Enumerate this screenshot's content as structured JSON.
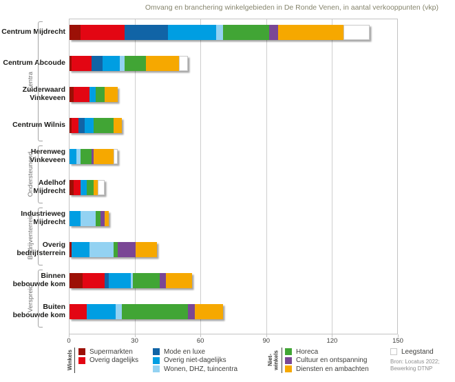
{
  "chart_data": {
    "type": "bar",
    "variant": "horizontal-stacked",
    "title": "Omvang en branchering winkelgebieden in De Ronde Venen, in aantal verkooppunten (vkp)",
    "x_axis": {
      "min": 0,
      "max": 150,
      "ticks": [
        0,
        30,
        60,
        90,
        120,
        150
      ]
    },
    "grid": "vertical-on",
    "legend_position": "bottom",
    "series": [
      {
        "key": "supermarkten",
        "name": "Supermarkten",
        "color": "#9C1006"
      },
      {
        "key": "overig_dagelijks",
        "name": "Overig dagelijks",
        "color": "#E30613"
      },
      {
        "key": "mode_en_luxe",
        "name": "Mode en luxe",
        "color": "#1164A6"
      },
      {
        "key": "overig_niet_dagelijks",
        "name": "Overig niet-dagelijks",
        "color": "#009EE2"
      },
      {
        "key": "wonen_dhz_tuincentra",
        "name": "Wonen, DHZ, tuincentra",
        "color": "#93D2F2"
      },
      {
        "key": "horeca",
        "name": "Horeca",
        "color": "#41A535"
      },
      {
        "key": "cultuur_en_ontspanning",
        "name": "Cultuur en ontspanning",
        "color": "#7A4795"
      },
      {
        "key": "diensten_en_ambachten",
        "name": "Diensten en ambachten",
        "color": "#F6A800"
      },
      {
        "key": "leegstand",
        "name": "Leegstand",
        "color": "#FFFFFF"
      }
    ],
    "groups": [
      {
        "label_lines": [
          "Centra"
        ],
        "rows": [
          0,
          1,
          2,
          3
        ]
      },
      {
        "label_lines": [
          "Ondersteunend"
        ],
        "rows": [
          4,
          5
        ]
      },
      {
        "label_lines": [
          "Bedrijventerrein"
        ],
        "rows": [
          6,
          7
        ]
      },
      {
        "label_lines": [
          "Verspreid"
        ],
        "rows": [
          8,
          9
        ]
      }
    ],
    "rows": [
      {
        "label_lines": [
          "Centrum Mijdrecht"
        ],
        "values": [
          5,
          20,
          20,
          22,
          3,
          21,
          4,
          30,
          12
        ]
      },
      {
        "label_lines": [
          "Centrum Abcoude"
        ],
        "values": [
          1,
          9,
          5,
          8,
          2,
          10,
          0,
          15,
          4
        ]
      },
      {
        "label_lines": [
          "Zuiderwaard",
          "Vinkeveen"
        ],
        "values": [
          2,
          7,
          0,
          3,
          0,
          4,
          0,
          6,
          0
        ]
      },
      {
        "label_lines": [
          "Centrum Wilnis"
        ],
        "values": [
          1,
          3,
          3,
          4,
          0,
          9,
          0,
          4,
          0
        ]
      },
      {
        "label_lines": [
          "Herenweg",
          "Vinkeveen"
        ],
        "values": [
          0,
          0,
          0,
          3,
          2,
          5,
          1,
          9,
          2
        ]
      },
      {
        "label_lines": [
          "Adelhof",
          "Mijdrecht"
        ],
        "values": [
          2,
          3,
          0,
          3,
          0,
          3,
          0,
          2,
          3
        ]
      },
      {
        "label_lines": [
          "Industrieweg",
          "Mijdrecht"
        ],
        "values": [
          0,
          0,
          0,
          5,
          7,
          2,
          2,
          2,
          0
        ]
      },
      {
        "label_lines": [
          "Overig",
          "bedrijfsterrein"
        ],
        "values": [
          1,
          0,
          0,
          8,
          11,
          2,
          8,
          10,
          0
        ]
      },
      {
        "label_lines": [
          "Binnen",
          "bebouwde kom"
        ],
        "values": [
          6,
          10,
          2,
          10,
          1,
          12,
          3,
          12,
          0
        ]
      },
      {
        "label_lines": [
          "Buiten",
          "bebouwde kom"
        ],
        "values": [
          0,
          8,
          0,
          13,
          3,
          30,
          3,
          13,
          0
        ]
      }
    ],
    "legend": {
      "groups": [
        {
          "label_lines": [
            "Winkels"
          ],
          "columns": [
            [
              0,
              1
            ],
            [
              2,
              3,
              4
            ]
          ]
        },
        {
          "label_lines": [
            "Niet-",
            "winkels"
          ],
          "columns": [
            [
              5,
              6,
              7
            ]
          ]
        }
      ],
      "standalone": [
        8
      ],
      "source_lines": [
        "Bron: Locatus 2022;",
        "Bewerking DTNP"
      ]
    },
    "colors": {
      "grid": "#CDCDCD",
      "plot_border": "#C2C2C2",
      "title_text": "#85846C",
      "row_label_text": "#1A1A18",
      "group_label_text": "#6F6F6F",
      "bracket": "#A3A3A3",
      "tick_text": "#3D3D3B",
      "legend_text": "#3D3D3B",
      "source_text": "#8C8C8C",
      "leegstand_border": "#C8C8C8"
    }
  }
}
